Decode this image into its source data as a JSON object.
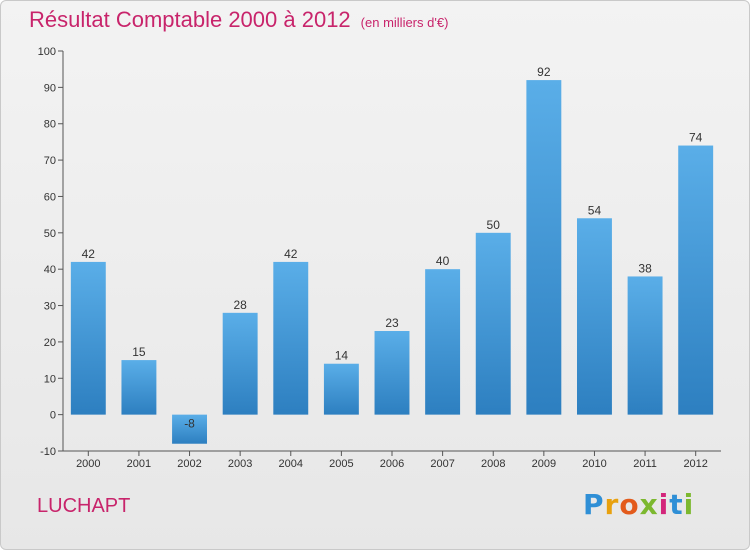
{
  "header": {
    "title": "Résultat Comptable 2000 à 2012",
    "subtitle": "(en milliers d'€)"
  },
  "commune": "LUCHAPT",
  "logo": {
    "letters": [
      "P",
      "r",
      "o",
      "x",
      "i",
      "t",
      "i"
    ],
    "colors": [
      "#2f8fd6",
      "#e8a10f",
      "#e35b1c",
      "#7cb82f",
      "#d3257b",
      "#2f8fd6",
      "#7cb82f"
    ]
  },
  "chart_data": {
    "type": "bar",
    "title": "Résultat Comptable 2000 à 2012",
    "xlabel": "",
    "ylabel": "en milliers d'€",
    "categories": [
      "2000",
      "2001",
      "2002",
      "2003",
      "2004",
      "2005",
      "2006",
      "2007",
      "2008",
      "2009",
      "2010",
      "2011",
      "2012"
    ],
    "values": [
      42,
      15,
      -8,
      28,
      42,
      14,
      23,
      40,
      50,
      92,
      54,
      38,
      74
    ],
    "data_labels": [
      "42",
      "15",
      "-8",
      "28",
      "42",
      "14",
      "23",
      "40",
      "50",
      "92",
      "54",
      "38",
      "74"
    ],
    "ylim": [
      -10,
      100
    ],
    "yticks": [
      -10,
      0,
      10,
      20,
      30,
      40,
      50,
      60,
      70,
      80,
      90,
      100
    ],
    "grid": false,
    "bar_color_top": "#5aaee8",
    "bar_color_bottom": "#2d7fc0"
  }
}
